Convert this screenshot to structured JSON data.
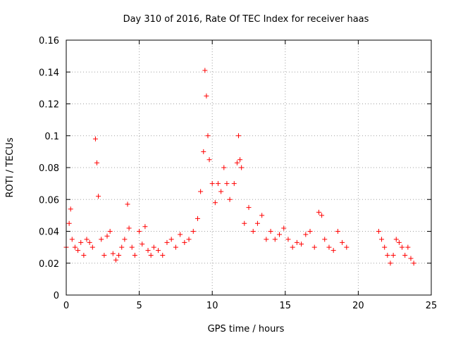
{
  "chart_data": {
    "type": "scatter",
    "title": "Day 310 of 2016, Rate Of TEC Index for receiver haas",
    "xlabel": "GPS time / hours",
    "ylabel": "ROTI / TECUs",
    "xlim": [
      0,
      25
    ],
    "ylim": [
      0,
      0.16
    ],
    "x_ticks": [
      0,
      5,
      10,
      15,
      20,
      25
    ],
    "x_tick_labels": [
      "0",
      "5",
      "10",
      "15",
      "20",
      "25"
    ],
    "y_ticks": [
      0,
      0.02,
      0.04,
      0.06,
      0.08,
      0.1,
      0.12,
      0.14,
      0.16
    ],
    "y_tick_labels": [
      "0",
      "0.02",
      "0.04",
      "0.06",
      "0.08",
      "0.1",
      "0.12",
      "0.14",
      "0.16"
    ],
    "grid": true,
    "marker": "plus",
    "color": "#ff0000",
    "series": [
      {
        "x": [
          0.0,
          0.2,
          0.3,
          0.4,
          0.6,
          0.8,
          1.0,
          1.2,
          1.4,
          1.6,
          1.8,
          2.0,
          2.1,
          2.2,
          2.4,
          2.6,
          2.8,
          3.0,
          3.2,
          3.4,
          3.6,
          3.8,
          4.0,
          4.2,
          4.3,
          4.5,
          4.7,
          5.0,
          5.2,
          5.4,
          5.6,
          5.8,
          6.0,
          6.3,
          6.6,
          6.9,
          7.2,
          7.5,
          7.8,
          8.1,
          8.4,
          8.7,
          9.0,
          9.2,
          9.4,
          9.5,
          9.6,
          9.7,
          9.8,
          10.0,
          10.2,
          10.4,
          10.6,
          10.8,
          11.0,
          11.2,
          11.5,
          11.7,
          11.8,
          11.9,
          12.0,
          12.2,
          12.5,
          12.8,
          13.1,
          13.4,
          13.7,
          14.0,
          14.3,
          14.6,
          14.9,
          15.2,
          15.5,
          15.8,
          16.1,
          16.4,
          16.7,
          17.0,
          17.3,
          17.5,
          17.7,
          18.0,
          18.3,
          18.6,
          18.9,
          19.2,
          21.4,
          21.6,
          21.8,
          22.0,
          22.2,
          22.4,
          22.6,
          22.8,
          23.0,
          23.2,
          23.4,
          23.6,
          23.8
        ],
        "y": [
          0.03,
          0.045,
          0.054,
          0.035,
          0.03,
          0.028,
          0.033,
          0.025,
          0.035,
          0.033,
          0.03,
          0.098,
          0.083,
          0.062,
          0.035,
          0.025,
          0.037,
          0.04,
          0.026,
          0.022,
          0.025,
          0.03,
          0.035,
          0.057,
          0.042,
          0.03,
          0.025,
          0.04,
          0.032,
          0.043,
          0.028,
          0.025,
          0.03,
          0.028,
          0.025,
          0.033,
          0.035,
          0.03,
          0.038,
          0.033,
          0.035,
          0.04,
          0.048,
          0.065,
          0.09,
          0.141,
          0.125,
          0.1,
          0.085,
          0.07,
          0.058,
          0.07,
          0.065,
          0.08,
          0.07,
          0.06,
          0.07,
          0.083,
          0.1,
          0.085,
          0.08,
          0.045,
          0.055,
          0.04,
          0.045,
          0.05,
          0.035,
          0.04,
          0.035,
          0.038,
          0.042,
          0.035,
          0.03,
          0.033,
          0.032,
          0.038,
          0.04,
          0.03,
          0.052,
          0.05,
          0.035,
          0.03,
          0.028,
          0.04,
          0.033,
          0.03,
          0.04,
          0.035,
          0.03,
          0.025,
          0.02,
          0.025,
          0.035,
          0.033,
          0.03,
          0.025,
          0.03,
          0.023,
          0.02
        ]
      }
    ]
  }
}
